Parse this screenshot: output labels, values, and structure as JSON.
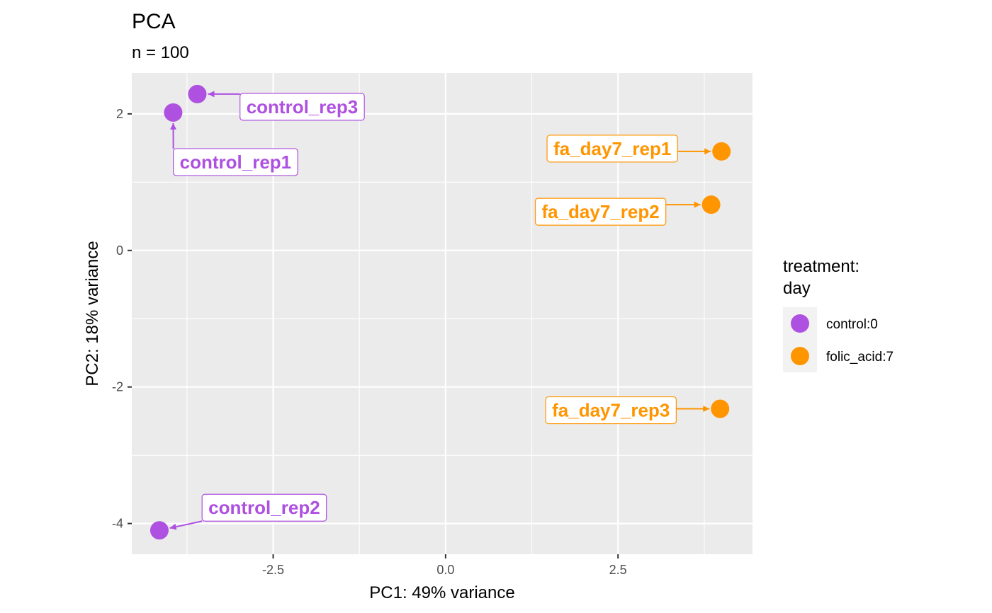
{
  "chart_data": {
    "type": "scatter",
    "title": "PCA",
    "subtitle": "n = 100",
    "xlabel": "PC1: 49% variance",
    "ylabel": "PC2: 18% variance",
    "xlim": [
      -4.55,
      4.45
    ],
    "ylim": [
      -4.45,
      2.6
    ],
    "x_ticks": [
      -2.5,
      0.0,
      2.5
    ],
    "x_tick_labels": [
      "-2.5",
      "0.0",
      "2.5"
    ],
    "y_ticks": [
      -4,
      -2,
      0,
      2
    ],
    "y_tick_labels": [
      "-4",
      "-2",
      "0",
      "2"
    ],
    "grid": true,
    "legend": {
      "title": [
        "treatment:",
        "day"
      ],
      "position": "right",
      "entries": [
        {
          "label": "control:0",
          "color": "#ae50e0"
        },
        {
          "label": "folic_acid:7",
          "color": "#ff9500"
        }
      ]
    },
    "points": [
      {
        "label": "control_rep1",
        "group": "control:0",
        "x": -3.95,
        "y": 2.02
      },
      {
        "label": "control_rep2",
        "group": "control:0",
        "x": -4.15,
        "y": -4.1
      },
      {
        "label": "control_rep3",
        "group": "control:0",
        "x": -3.6,
        "y": 2.29
      },
      {
        "label": "fa_day7_rep1",
        "group": "folic_acid:7",
        "x": 4.0,
        "y": 1.45
      },
      {
        "label": "fa_day7_rep2",
        "group": "folic_acid:7",
        "x": 3.85,
        "y": 0.67
      },
      {
        "label": "fa_day7_rep3",
        "group": "folic_acid:7",
        "x": 3.98,
        "y": -2.32
      }
    ]
  }
}
